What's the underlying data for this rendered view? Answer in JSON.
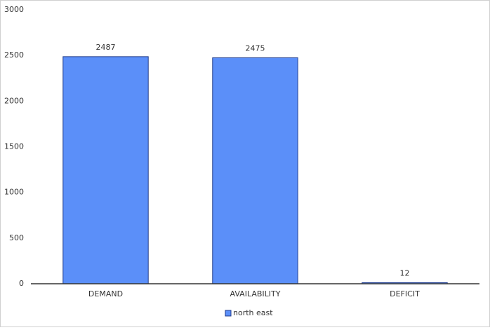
{
  "chart_data": {
    "type": "bar",
    "categories": [
      "DEMAND",
      "AVAILABILITY",
      "DEFICIT"
    ],
    "series": [
      {
        "name": "north east",
        "color": "#5b8ff9",
        "values": [
          2487,
          2475,
          12
        ]
      }
    ],
    "ylim": [
      0,
      3000
    ],
    "yticks": [
      0,
      500,
      1000,
      1500,
      2000,
      2500,
      3000
    ],
    "grid": false,
    "legend": "bottom",
    "data_labels": true
  }
}
